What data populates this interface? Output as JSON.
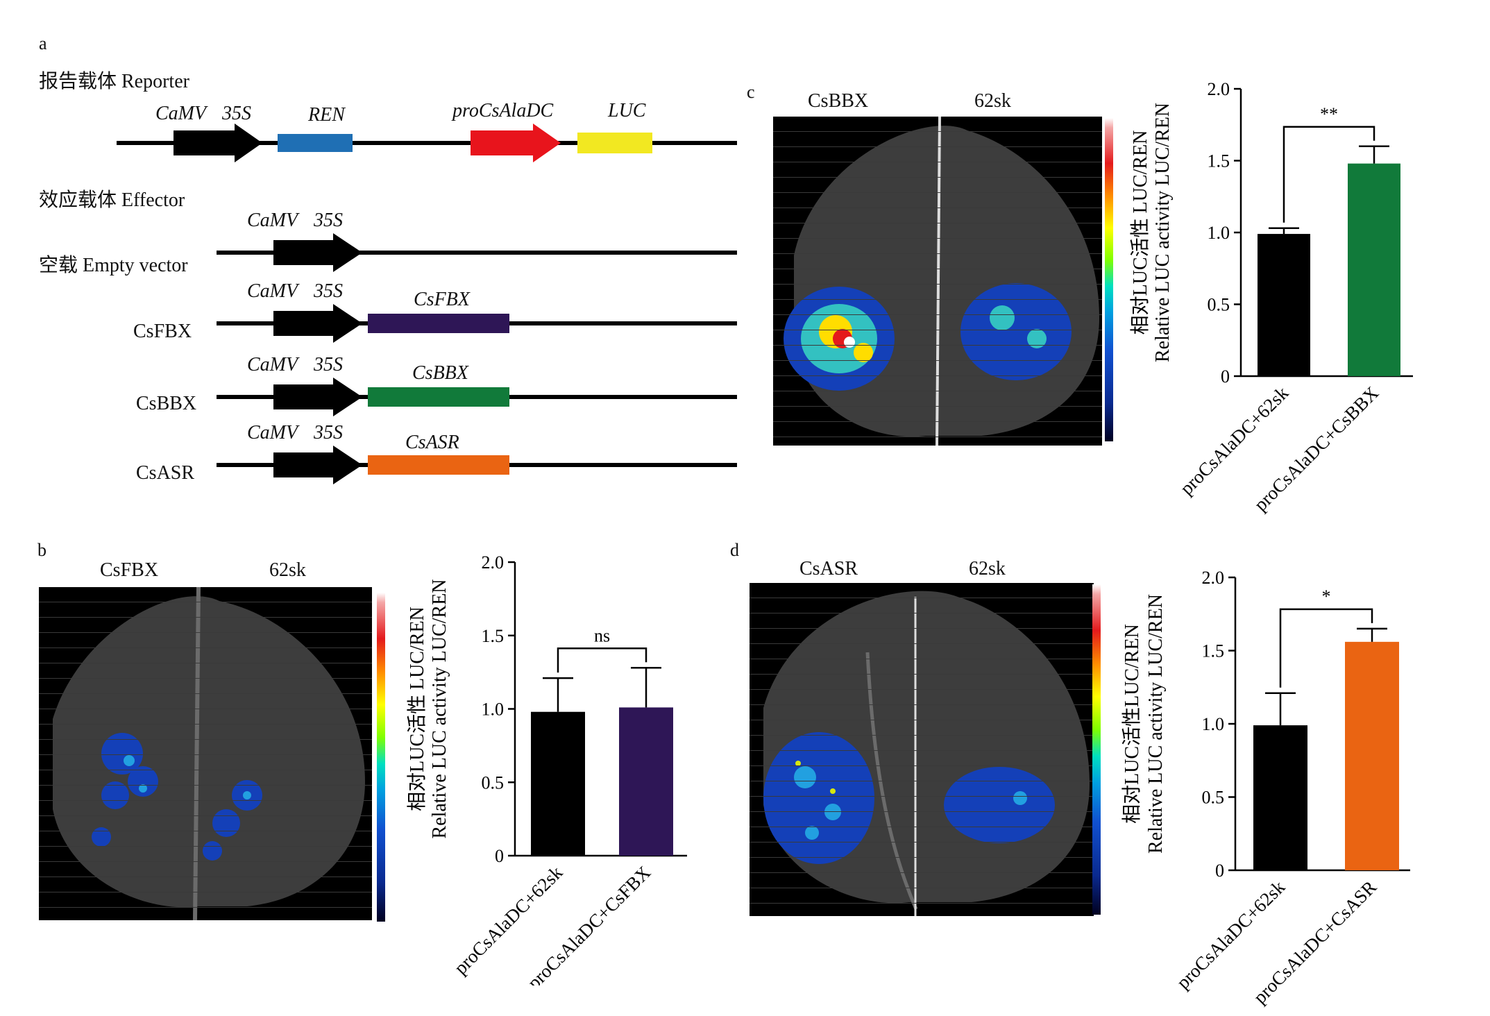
{
  "panel_a": {
    "letter": "a",
    "reporter_title": "报告载体 Reporter",
    "reporter_labels": {
      "camv": "CaMV",
      "s35": "35S",
      "ren": "REN",
      "pro": "proCsAlaDC",
      "luc": "LUC"
    },
    "effector_title": "效应载体 Effector",
    "rows": [
      {
        "name": "空载 Empty vector",
        "camv": "CaMV",
        "s35": "35S",
        "gene": ""
      },
      {
        "name": "CsFBX",
        "camv": "CaMV",
        "s35": "35S",
        "gene": "CsFBX"
      },
      {
        "name": "CsBBX",
        "camv": "CaMV",
        "s35": "35S",
        "gene": "CsBBX"
      },
      {
        "name": "CsASR",
        "camv": "CaMV",
        "s35": "35S",
        "gene": "CsASR"
      }
    ],
    "colors": {
      "ren": "#1f6fb4",
      "pro": "#e8141c",
      "luc": "#f2e821",
      "fbx": "#2e1656",
      "bbx": "#117a3a",
      "asr": "#ea6412"
    }
  },
  "panel_b": {
    "letter": "b",
    "left": "CsFBX",
    "right": "62sk"
  },
  "panel_c": {
    "letter": "c",
    "left": "CsBBX",
    "right": "62sk"
  },
  "panel_d": {
    "letter": "d",
    "left": "CsASR",
    "right": "62sk"
  },
  "chart_data": [
    {
      "type": "bar",
      "panel": "b",
      "categories": [
        "proCsAlaDC+62sk",
        "proCsAlaDC+CsFBX"
      ],
      "values": [
        0.98,
        1.01
      ],
      "errors": [
        0.23,
        0.27
      ],
      "colors": [
        "#000000",
        "#2e1656"
      ],
      "ylabel_cn": "相对LUC活性 LUC/REN",
      "ylabel_en": "Relative LUC activity LUC/REN",
      "ylim": [
        0,
        2.0
      ],
      "yticks": [
        "0",
        "0.5",
        "1.0",
        "1.5",
        "2.0"
      ],
      "significance": "ns"
    },
    {
      "type": "bar",
      "panel": "c",
      "categories": [
        "proCsAlaDC+62sk",
        "proCsAlaDC+CsBBX"
      ],
      "values": [
        0.99,
        1.48
      ],
      "errors": [
        0.04,
        0.12
      ],
      "colors": [
        "#000000",
        "#117a3a"
      ],
      "ylabel_cn": "相对LUC活性 LUC/REN",
      "ylabel_en": "Relative LUC activity LUC/REN",
      "ylim": [
        0,
        2.0
      ],
      "yticks": [
        "0",
        "0.5",
        "1.0",
        "1.5",
        "2.0"
      ],
      "significance": "**"
    },
    {
      "type": "bar",
      "panel": "d",
      "categories": [
        "proCsAlaDC+62sk",
        "proCsAlaDC+CsASR"
      ],
      "values": [
        0.99,
        1.56
      ],
      "errors": [
        0.22,
        0.09
      ],
      "colors": [
        "#000000",
        "#ea6412"
      ],
      "ylabel_cn": "相对LUC活性LUC/REN",
      "ylabel_en": "Relative LUC activity LUC/REN",
      "ylim": [
        0,
        2.0
      ],
      "yticks": [
        "0",
        "0.5",
        "1.0",
        "1.5",
        "2.0"
      ],
      "significance": "*"
    }
  ]
}
